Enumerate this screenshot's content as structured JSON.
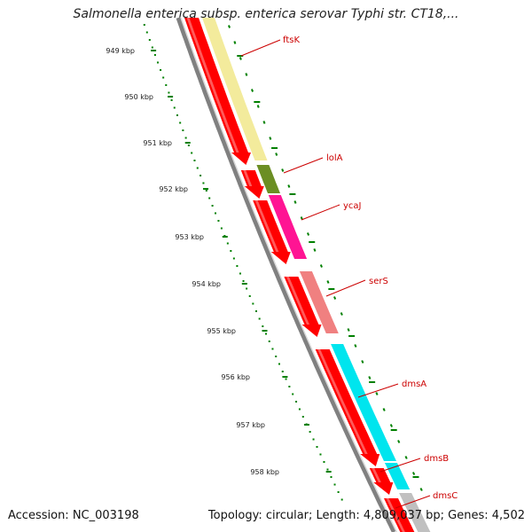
{
  "header": {
    "title": "Salmonella enterica subsp. enterica serovar Typhi str. CT18,..."
  },
  "footer": {
    "accession": "Accession: NC_003198",
    "topology": "Topology: circular; Length: 4,809,037 bp; Genes: 4,502"
  },
  "ticks": [
    "949 kbp",
    "950 kbp",
    "951 kbp",
    "952 kbp",
    "953 kbp",
    "954 kbp",
    "955 kbp",
    "956 kbp",
    "957 kbp",
    "958 kbp"
  ],
  "genes": [
    {
      "name": "ftsK",
      "color": "#f3eb9c"
    },
    {
      "name": "lolA",
      "color": "#6b8e23"
    },
    {
      "name": "ycaJ",
      "color": "#ff1493"
    },
    {
      "name": "serS",
      "color": "#f08080"
    },
    {
      "name": "dmsA",
      "color": "#00e5ee"
    },
    {
      "name": "dmsB",
      "color": "#00e5ee"
    },
    {
      "name": "dmsC",
      "color": "#c0c0c0"
    }
  ],
  "colors": {
    "cds": "#ff0000",
    "backbone": "#808080",
    "tick": "#008000",
    "label": "#cc0000"
  }
}
